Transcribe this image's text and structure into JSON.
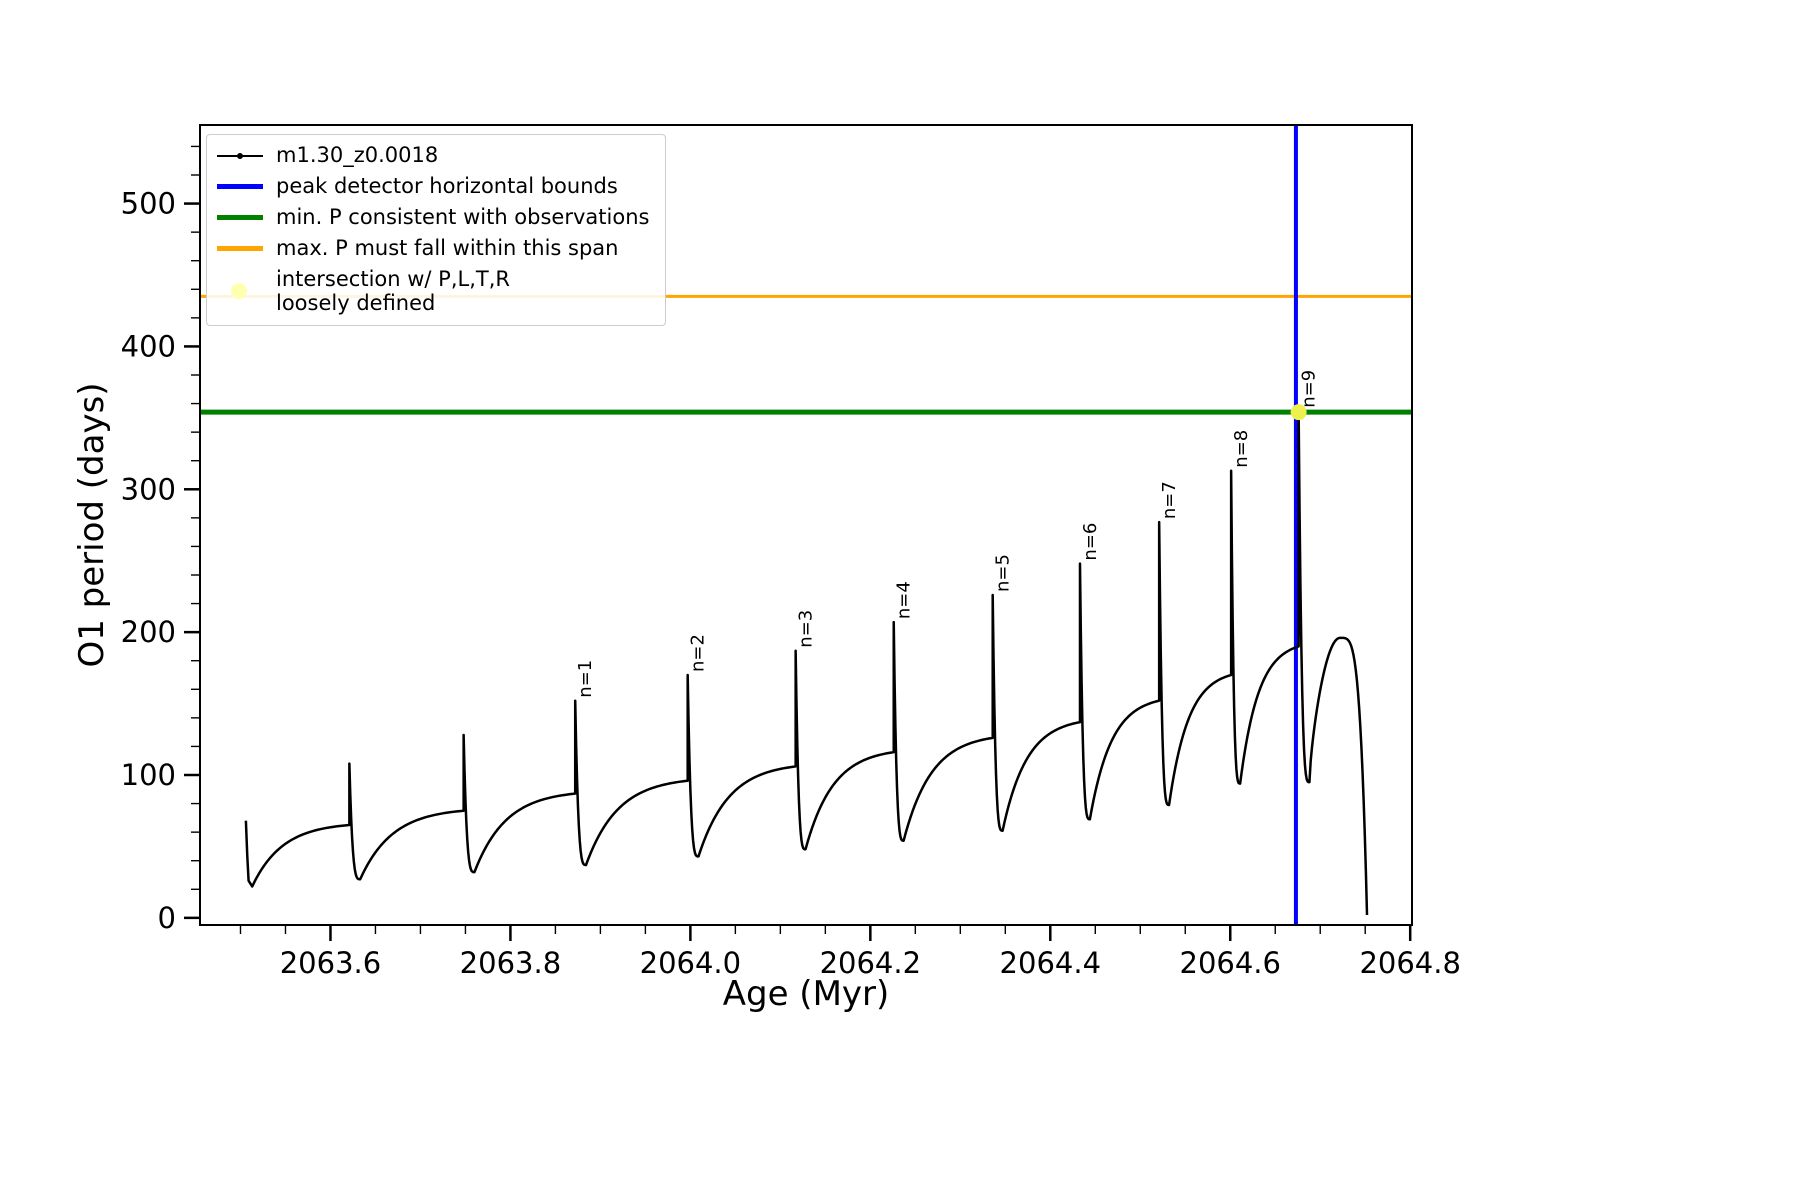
{
  "page": {
    "background": "#ffffff"
  },
  "chart_data": {
    "type": "line",
    "title": "",
    "xlabel": "Age (Myr)",
    "ylabel": "O1 period (days)",
    "xlim": [
      2063.455,
      2064.802
    ],
    "ylim": [
      -5,
      555
    ],
    "x_ticks": [
      2063.6,
      2063.8,
      2064.0,
      2064.2,
      2064.4,
      2064.6,
      2064.8
    ],
    "x_tick_labels": [
      "2063.6",
      "2063.8",
      "2064.0",
      "2064.2",
      "2064.4",
      "2064.6",
      "2064.8"
    ],
    "y_ticks": [
      0,
      100,
      200,
      300,
      400,
      500
    ],
    "y_tick_labels": [
      "0",
      "100",
      "200",
      "300",
      "400",
      "500"
    ],
    "x_minor_step": 0.05,
    "y_minor_step": 20,
    "grid": false,
    "legend_position": "upper left",
    "series": [
      {
        "name": "m1.30_z0.0018",
        "color": "#000000"
      }
    ],
    "hlines": [
      {
        "name": "max. P must fall within this span",
        "y": 435,
        "color": "#ffa500",
        "width": 3
      },
      {
        "name": "min. P consistent with observations",
        "y": 354,
        "color": "#008000",
        "width": 5
      }
    ],
    "vlines": [
      {
        "name": "peak detector horizontal bounds",
        "x": 2064.673,
        "color": "#0000ff",
        "width": 4
      }
    ],
    "intersection_point": {
      "x": 2064.676,
      "y": 354,
      "color": "#edf04f"
    },
    "lead_in": {
      "x": 2063.506,
      "y": 68
    },
    "cycles": [
      {
        "label": "",
        "x_min": 2063.513,
        "min": 22,
        "x_peak": 2063.621,
        "plateau": 65,
        "peak": 108
      },
      {
        "label": "",
        "x_min": 2063.633,
        "min": 27,
        "x_peak": 2063.748,
        "plateau": 75,
        "peak": 128
      },
      {
        "label": "n=1",
        "x_min": 2063.76,
        "min": 32,
        "x_peak": 2063.872,
        "plateau": 87,
        "peak": 152
      },
      {
        "label": "n=2",
        "x_min": 2063.884,
        "min": 37,
        "x_peak": 2063.997,
        "plateau": 96,
        "peak": 170
      },
      {
        "label": "n=3",
        "x_min": 2064.009,
        "min": 43,
        "x_peak": 2064.117,
        "plateau": 106,
        "peak": 187
      },
      {
        "label": "n=4",
        "x_min": 2064.128,
        "min": 48,
        "x_peak": 2064.226,
        "plateau": 116,
        "peak": 207
      },
      {
        "label": "n=5",
        "x_min": 2064.237,
        "min": 54,
        "x_peak": 2064.336,
        "plateau": 126,
        "peak": 226
      },
      {
        "label": "n=6",
        "x_min": 2064.347,
        "min": 61,
        "x_peak": 2064.433,
        "plateau": 137,
        "peak": 248
      },
      {
        "label": "n=7",
        "x_min": 2064.444,
        "min": 69,
        "x_peak": 2064.521,
        "plateau": 152,
        "peak": 277
      },
      {
        "label": "n=8",
        "x_min": 2064.532,
        "min": 79,
        "x_peak": 2064.601,
        "plateau": 170,
        "peak": 313
      },
      {
        "label": "n=9",
        "x_min": 2064.611,
        "min": 94,
        "x_peak": 2064.676,
        "plateau": 190,
        "peak": 355
      }
    ],
    "tail": {
      "x_min": 2064.688,
      "min": 95,
      "x_hump": 2064.722,
      "hump": 196,
      "x_end": 2064.752,
      "end": 2
    }
  },
  "legend": {
    "entries": [
      {
        "label": "m1.30_z0.0018",
        "swatch": "line-dot",
        "color": "#000000"
      },
      {
        "label": "peak detector horizontal bounds",
        "swatch": "line",
        "color": "#0000ff"
      },
      {
        "label": "min. P consistent with observations",
        "swatch": "line",
        "color": "#008000"
      },
      {
        "label": "max. P must fall within this span",
        "swatch": "line",
        "color": "#ffa500"
      },
      {
        "label": "intersection w/ P,L,T,R",
        "label2": "loosely defined",
        "swatch": "dot",
        "color": "#ffffb0"
      }
    ]
  }
}
